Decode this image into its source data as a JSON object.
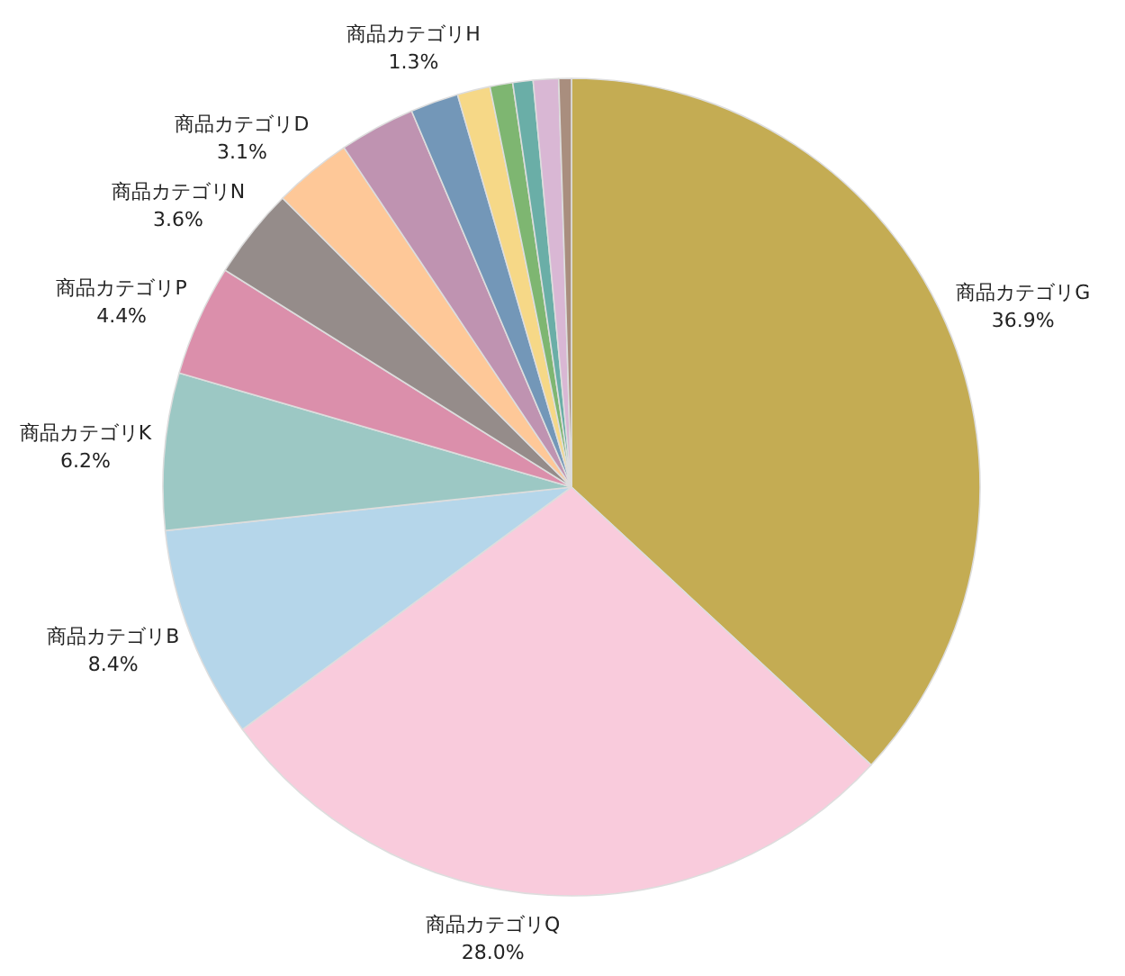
{
  "chart_data": {
    "type": "pie",
    "categories": [
      "商品カテゴリG",
      "商品カテゴリQ",
      "商品カテゴリB",
      "商品カテゴリK",
      "商品カテゴリP",
      "商品カテゴリN",
      "商品カテゴリD",
      null,
      null,
      "商品カテゴリH",
      null,
      null,
      null,
      null
    ],
    "values": [
      36.9,
      28.0,
      8.4,
      6.2,
      4.4,
      3.6,
      3.1,
      3.0,
      1.9,
      1.3,
      0.9,
      0.8,
      1.0,
      0.5
    ],
    "value_labels": [
      "36.9%",
      "28.0%",
      "8.4%",
      "6.2%",
      "4.4%",
      "3.6%",
      "3.1%",
      null,
      null,
      "1.3%",
      null,
      null,
      null,
      null
    ],
    "colors": [
      "#c4ac53",
      "#f9cbdc",
      "#b5d6ea",
      "#9cc8c4",
      "#db8fab",
      "#958c8a",
      "#fec898",
      "#bf93b1",
      "#7397b8",
      "#f6d887",
      "#7eb671",
      "#6aaea7",
      "#d9b7d4",
      "#a98e7e"
    ]
  }
}
